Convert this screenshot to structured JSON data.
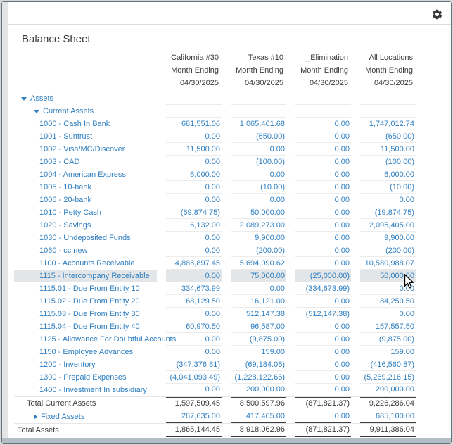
{
  "window": {
    "settings_icon": "gear-icon"
  },
  "report": {
    "title": "Balance Sheet",
    "columns": [
      {
        "name": "California #30",
        "period": "Month Ending",
        "date": "04/30/2025"
      },
      {
        "name": "Texas #10",
        "period": "Month Ending",
        "date": "04/30/2025"
      },
      {
        "name": "_Elimination",
        "period": "Month Ending",
        "date": "04/30/2025"
      },
      {
        "name": "All Locations",
        "period": "Month Ending",
        "date": "04/30/2025"
      }
    ],
    "rows": [
      {
        "label": "Assets",
        "kind": "group",
        "level": 0,
        "expanded": true,
        "values": null
      },
      {
        "label": "Current Assets",
        "kind": "group",
        "level": 1,
        "expanded": true,
        "values": null
      },
      {
        "label": "1000 - Cash In Bank",
        "kind": "account",
        "values": [
          "681,551.06",
          "1,065,461.68",
          "0.00",
          "1,747,012.74"
        ]
      },
      {
        "label": "1001 - Suntrust",
        "kind": "account",
        "values": [
          "0.00",
          "(650.00)",
          "0.00",
          "(650.00)"
        ]
      },
      {
        "label": "1002 - Visa/MC/Discover",
        "kind": "account",
        "values": [
          "11,500.00",
          "0.00",
          "0.00",
          "11,500.00"
        ]
      },
      {
        "label": "1003 - CAD",
        "kind": "account",
        "values": [
          "0.00",
          "(100.00)",
          "0.00",
          "(100.00)"
        ]
      },
      {
        "label": "1004 - American Express",
        "kind": "account",
        "values": [
          "6,000.00",
          "0.00",
          "0.00",
          "6,000.00"
        ]
      },
      {
        "label": "1005 - 10-bank",
        "kind": "account",
        "values": [
          "0.00",
          "(10.00)",
          "0.00",
          "(10.00)"
        ]
      },
      {
        "label": "1006 - 20-bank",
        "kind": "account",
        "values": [
          "0.00",
          "0.00",
          "0.00",
          "0.00"
        ]
      },
      {
        "label": "1010 - Petty Cash",
        "kind": "account",
        "values": [
          "(69,874.75)",
          "50,000.00",
          "0.00",
          "(19,874.75)"
        ]
      },
      {
        "label": "1020 - Savings",
        "kind": "account",
        "values": [
          "6,132.00",
          "2,089,273.00",
          "0.00",
          "2,095,405.00"
        ]
      },
      {
        "label": "1030 - Undeposited Funds",
        "kind": "account",
        "values": [
          "0.00",
          "9,900.00",
          "0.00",
          "9,900.00"
        ]
      },
      {
        "label": "1060 - cc new",
        "kind": "account",
        "values": [
          "0.00",
          "(200.00)",
          "0.00",
          "(200.00)"
        ]
      },
      {
        "label": "1100 - Accounts Receivable",
        "kind": "account",
        "values": [
          "4,886,897.45",
          "5,694,090.62",
          "0.00",
          "10,580,988.07"
        ]
      },
      {
        "label": "1115 - Intercompany Receivable",
        "kind": "account",
        "highlight": true,
        "values": [
          "0.00",
          "75,000.00",
          "(25,000.00)",
          "50,000.00"
        ]
      },
      {
        "label": "1115.01 - Due From Entity 10",
        "kind": "account",
        "values": [
          "334,673.99",
          "0.00",
          "(334,673.99)",
          "0.00"
        ]
      },
      {
        "label": "1115.02 - Due From Entity 20",
        "kind": "account",
        "values": [
          "68,129.50",
          "16,121.00",
          "0.00",
          "84,250.50"
        ]
      },
      {
        "label": "1115.03 - Due From Entity 30",
        "kind": "account",
        "values": [
          "0.00",
          "512,147.38",
          "(512,147.38)",
          "0.00"
        ]
      },
      {
        "label": "1115.04 - Due From Entity 40",
        "kind": "account",
        "values": [
          "60,970.50",
          "96,587.00",
          "0.00",
          "157,557.50"
        ]
      },
      {
        "label": "1125 - Allowance For Doubtful Accounts",
        "kind": "account",
        "values": [
          "0.00",
          "(9,875.00)",
          "0.00",
          "(9,875.00)"
        ]
      },
      {
        "label": "1150 - Employee Advances",
        "kind": "account",
        "values": [
          "0.00",
          "159.00",
          "0.00",
          "159.00"
        ]
      },
      {
        "label": "1200 - Inventory",
        "kind": "account",
        "values": [
          "(347,376.81)",
          "(69,184.06)",
          "0.00",
          "(416,560.87)"
        ]
      },
      {
        "label": "1300 - Prepaid Expenses",
        "kind": "account",
        "values": [
          "(4,041,093.49)",
          "(1,228,122.66)",
          "0.00",
          "(5,269,216.15)"
        ]
      },
      {
        "label": "1400 - Investment In subsidiary",
        "kind": "account",
        "values": [
          "0.00",
          "200,000.00",
          "0.00",
          "200,000.00"
        ]
      },
      {
        "label": "Total Current Assets",
        "kind": "total",
        "level": 1,
        "values": [
          "1,597,509.45",
          "8,500,597.96",
          "(871,821.37)",
          "9,226,286.04"
        ]
      },
      {
        "label": "Fixed Assets",
        "kind": "group",
        "level": 1,
        "expanded": false,
        "values": [
          "267,635.00",
          "417,465.00",
          "0.00",
          "685,100.00"
        ]
      },
      {
        "label": "Total Assets",
        "kind": "total",
        "level": 0,
        "values": [
          "1,865,144.45",
          "8,918,062.96",
          "(871,821.37)",
          "9,911,386.04"
        ]
      }
    ]
  },
  "colors": {
    "link_blue": "#2f7fc1",
    "text_dark": "#333333",
    "highlight_row_bg": "#e3e6e8",
    "header_underline": "#4d4d4d",
    "window_border": "#65717b"
  }
}
